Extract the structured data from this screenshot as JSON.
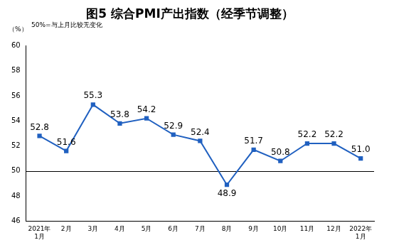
{
  "chart_data": {
    "type": "line",
    "title": "图5 综合PMI产出指数（经季节调整）",
    "y_label": "（%）",
    "annotations": [
      "50%=与上月比较无变化"
    ],
    "categories": [
      "2021年\n1月",
      "2月",
      "3月",
      "4月",
      "5月",
      "6月",
      "7月",
      "8月",
      "9月",
      "10月",
      "11月",
      "12月",
      "2022年\n1月"
    ],
    "values": [
      52.8,
      51.6,
      55.3,
      53.8,
      54.2,
      52.9,
      52.4,
      48.9,
      51.7,
      50.8,
      52.2,
      52.2,
      51.0
    ],
    "value_labels": [
      "52.8",
      "51.6",
      "55.3",
      "53.8",
      "54.2",
      "52.9",
      "52.4",
      "48.9",
      "51.7",
      "50.8",
      "52.2",
      "52.2",
      "51.0"
    ],
    "color": "#2060c0",
    "marker": "square",
    "ylim": [
      46,
      60
    ],
    "yticks": [
      46,
      48,
      50,
      52,
      54,
      56,
      58,
      60
    ],
    "grid": false,
    "data_labels": true,
    "reference_line": 50
  }
}
